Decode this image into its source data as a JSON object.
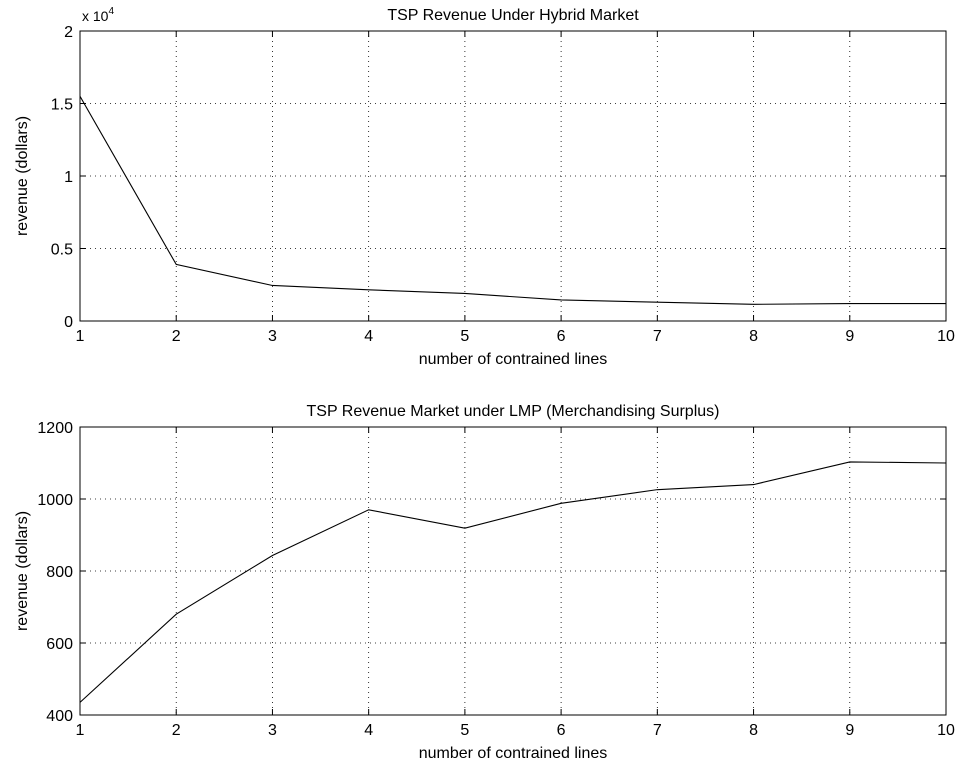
{
  "chart_data": [
    {
      "type": "line",
      "title": "TSP Revenue Under Hybrid Market",
      "xlabel": "number of contrained lines",
      "ylabel": "revenue (dollars)",
      "y_multiplier_label": "x 10",
      "y_multiplier_exponent": "4",
      "xlim": [
        1,
        10
      ],
      "ylim": [
        0,
        2
      ],
      "x_ticks": [
        "1",
        "2",
        "3",
        "4",
        "5",
        "6",
        "7",
        "8",
        "9",
        "10"
      ],
      "y_ticks": [
        "0",
        "0.5",
        "1",
        "1.5",
        "2"
      ],
      "grid": true,
      "series": [
        {
          "x": [
            1,
            2,
            3,
            4,
            5,
            6,
            7,
            8,
            9,
            10
          ],
          "values": [
            1.55,
            0.39,
            0.245,
            0.215,
            0.19,
            0.145,
            0.13,
            0.115,
            0.12,
            0.12
          ]
        }
      ]
    },
    {
      "type": "line",
      "title": "TSP Revenue Market under LMP (Merchandising Surplus)",
      "xlabel": "number of contrained lines",
      "ylabel": "revenue (dollars)",
      "xlim": [
        1,
        10
      ],
      "ylim": [
        400,
        1200
      ],
      "x_ticks": [
        "1",
        "2",
        "3",
        "4",
        "5",
        "6",
        "7",
        "8",
        "9",
        "10"
      ],
      "y_ticks": [
        "400",
        "600",
        "800",
        "1000",
        "1200"
      ],
      "grid": true,
      "series": [
        {
          "x": [
            1,
            2,
            3,
            4,
            5,
            6,
            7,
            8,
            9,
            10
          ],
          "values": [
            435,
            680,
            843,
            970,
            919,
            988,
            1026,
            1040,
            1103,
            1100
          ]
        }
      ]
    }
  ]
}
